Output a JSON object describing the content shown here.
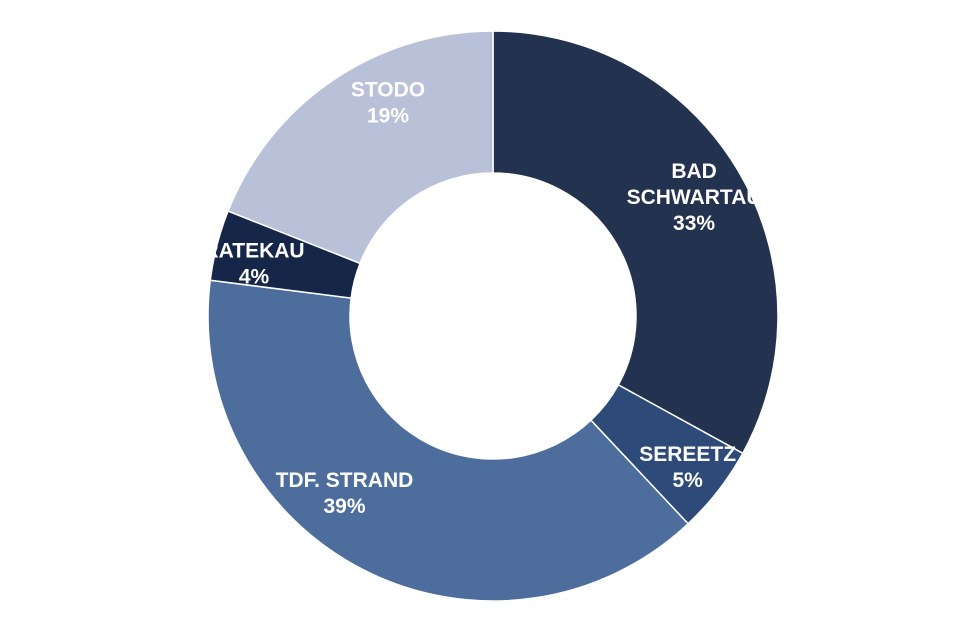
{
  "chart_data": {
    "type": "pie",
    "variant": "donut",
    "slices": [
      {
        "label": [
          "BAD",
          "SCHWARTAU"
        ],
        "value": 33,
        "value_label": "33%",
        "color": "#22324f"
      },
      {
        "label": [
          "SEREETZ"
        ],
        "value": 5,
        "value_label": "5%",
        "color": "#2e4a78"
      },
      {
        "label": [
          "TDF. STRAND"
        ],
        "value": 39,
        "value_label": "39%",
        "color": "#4d6d9d"
      },
      {
        "label": [
          "RATEKAU"
        ],
        "value": 4,
        "value_label": "4%",
        "color": "#152648"
      },
      {
        "label": [
          "STODO"
        ],
        "value": 19,
        "value_label": "19%",
        "color": "#b9c1d8"
      }
    ],
    "start_angle_deg": 0,
    "direction": "clockwise"
  }
}
